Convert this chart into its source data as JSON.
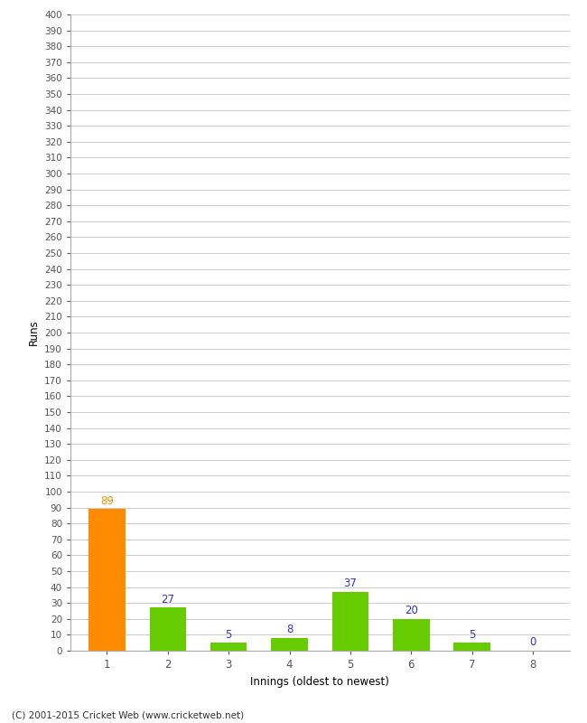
{
  "categories": [
    1,
    2,
    3,
    4,
    5,
    6,
    7,
    8
  ],
  "values": [
    89,
    27,
    5,
    8,
    37,
    20,
    5,
    0
  ],
  "bar_colors": [
    "#ff8c00",
    "#66cc00",
    "#66cc00",
    "#66cc00",
    "#66cc00",
    "#66cc00",
    "#66cc00",
    "#66cc00"
  ],
  "label_colors": [
    "#ff8c00",
    "#3333cc",
    "#3333cc",
    "#3333cc",
    "#3333cc",
    "#3333cc",
    "#3333cc",
    "#3333cc"
  ],
  "xlabel": "Innings (oldest to newest)",
  "ylabel": "Runs",
  "ylim": [
    0,
    400
  ],
  "background_color": "#ffffff",
  "grid_color": "#cccccc",
  "footer": "(C) 2001-2015 Cricket Web (www.cricketweb.net)"
}
